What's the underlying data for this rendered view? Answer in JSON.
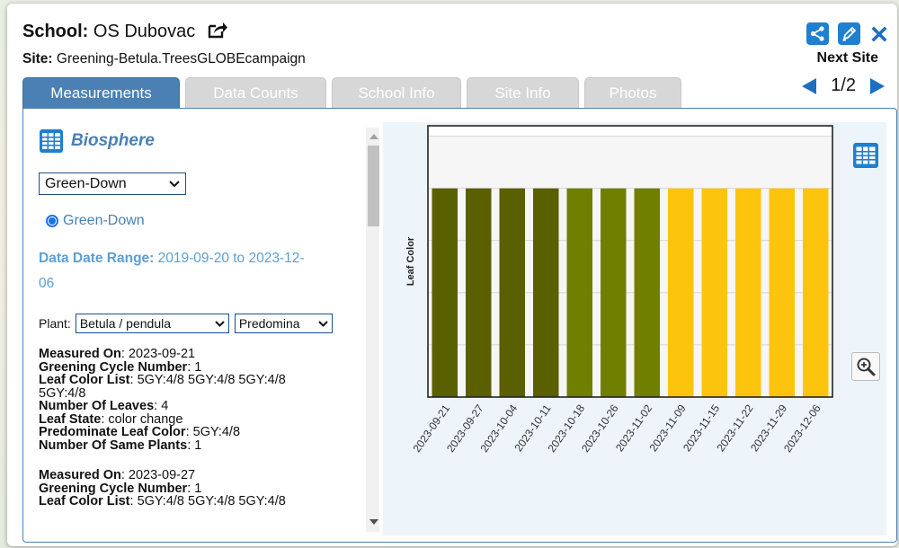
{
  "header": {
    "school_label": "School:",
    "school_name": "OS Dubovac",
    "site_label": "Site:",
    "site_name": "Greening-Betula.TreesGLOBEcampaign"
  },
  "icons": {
    "share": "share-icon",
    "edit": "edit-icon",
    "close": "close-icon",
    "external": "external-link-icon",
    "table": "table-icon",
    "zoom": "zoom-in-icon"
  },
  "navigation": {
    "next_site_label": "Next Site",
    "page_text": "1/2"
  },
  "tabs": [
    {
      "label": "Measurements",
      "active": true
    },
    {
      "label": "Data Counts",
      "active": false
    },
    {
      "label": "School Info",
      "active": false
    },
    {
      "label": "Site Info",
      "active": false
    },
    {
      "label": "Photos",
      "active": false
    }
  ],
  "left_panel": {
    "section_title": "Biosphere",
    "protocol_select_value": "Green-Down",
    "radio_label": "Green-Down",
    "date_range_label": "Data Date Range:",
    "date_range_value_line1": "2019-09-20 to 2023-12-",
    "date_range_value_line2": "06",
    "plant_label": "Plant:",
    "plant_select_value": "Betula / pendula",
    "color_select_value": "Predomina"
  },
  "records": [
    {
      "measured_on_label": "Measured On",
      "measured_on": "2023-09-21",
      "cycle_label": "Greening Cycle Number",
      "cycle": "1",
      "color_list_label": "Leaf Color List",
      "color_list_line1": "5GY:4/8 5GY:4/8 5GY:4/8",
      "color_list_line2": "5GY:4/8",
      "leaves_label": "Number Of Leaves",
      "leaves": "4",
      "state_label": "Leaf State",
      "state": "color change",
      "predominate_label": "Predominate Leaf Color",
      "predominate": "5GY:4/8",
      "same_plants_label": "Number Of Same Plants",
      "same_plants": "1"
    },
    {
      "measured_on_label": "Measured On",
      "measured_on": "2023-09-27",
      "cycle_label": "Greening Cycle Number",
      "cycle": "1",
      "color_list_label": "Leaf Color List",
      "color_list_line1": "5GY:4/8 5GY:4/8 5GY:4/8"
    }
  ],
  "colors": {
    "accent": "#4a80b3",
    "link_blue": "#5b9fd6",
    "icon_blue": "#1f7fd1",
    "bar_dark_olive": "#5a5f00",
    "bar_olive": "#717f00",
    "bar_yellow": "#fcc40c"
  },
  "chart_data": {
    "type": "bar",
    "title": "",
    "xlabel": "",
    "ylabel": "Leaf Color",
    "categories": [
      "2023-09-21",
      "2023-09-27",
      "2023-10-04",
      "2023-10-11",
      "2023-10-18",
      "2023-10-26",
      "2023-11-02",
      "2023-11-09",
      "2023-11-15",
      "2023-11-22",
      "2023-11-29",
      "2023-12-06"
    ],
    "values": [
      4,
      4,
      4,
      4,
      4,
      4,
      4,
      4,
      4,
      4,
      4,
      4
    ],
    "bar_colors": [
      "#5a5f00",
      "#5a5f00",
      "#5a5f00",
      "#5a5f00",
      "#717f00",
      "#717f00",
      "#717f00",
      "#fcc40c",
      "#fcc40c",
      "#fcc40c",
      "#fcc40c",
      "#fcc40c"
    ],
    "ylim": [
      0,
      5.2
    ],
    "yticks": [
      1,
      2,
      3,
      4,
      5
    ],
    "grid": true,
    "legend": "none"
  }
}
